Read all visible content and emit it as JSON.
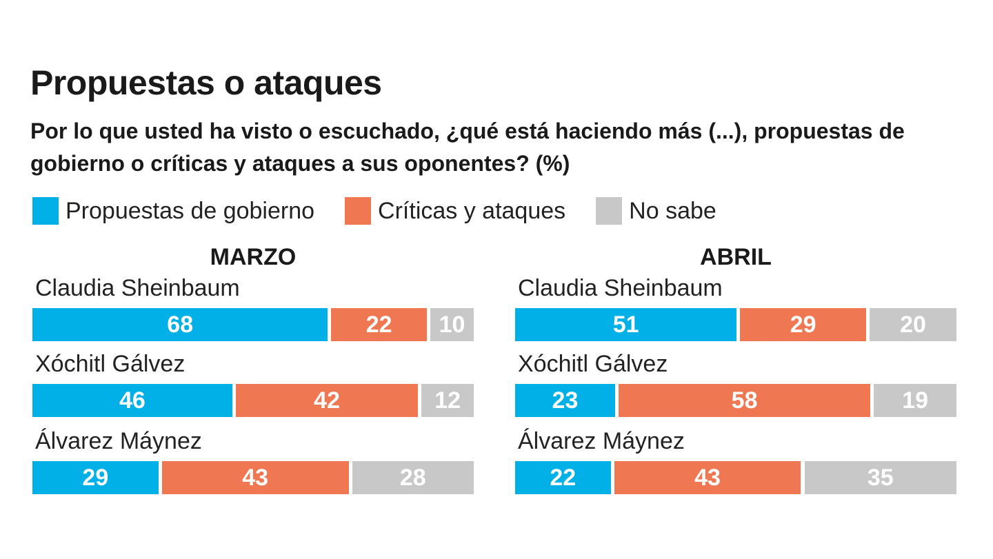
{
  "title": "Propuestas o ataques",
  "subtitle": "Por lo que usted ha visto o escuchado, ¿qué está haciendo más (...), propuestas de gobierno o críticas y ataques a sus oponentes? (%)",
  "colors": {
    "propuestas": "#00b0e6",
    "criticas": "#ef7752",
    "no_sabe": "#c8c8c8"
  },
  "legend": [
    {
      "label": "Propuestas de gobierno",
      "color": "#00b0e6"
    },
    {
      "label": "Críticas y ataques",
      "color": "#ef7752"
    },
    {
      "label": "No sabe",
      "color": "#c8c8c8"
    }
  ],
  "chart_data": [
    {
      "type": "bar",
      "orientation": "horizontal",
      "stacked": true,
      "title": "MARZO",
      "categories": [
        "Claudia Sheinbaum",
        "Xóchitl Gálvez",
        "Álvarez Máynez"
      ],
      "series": [
        {
          "name": "Propuestas de gobierno",
          "values": [
            68,
            46,
            29
          ]
        },
        {
          "name": "Críticas y ataques",
          "values": [
            22,
            42,
            43
          ]
        },
        {
          "name": "No sabe",
          "values": [
            10,
            12,
            28
          ]
        }
      ]
    },
    {
      "type": "bar",
      "orientation": "horizontal",
      "stacked": true,
      "title": "ABRIL",
      "categories": [
        "Claudia Sheinbaum",
        "Xóchitl Gálvez",
        "Álvarez Máynez"
      ],
      "series": [
        {
          "name": "Propuestas de gobierno",
          "values": [
            51,
            23,
            22
          ]
        },
        {
          "name": "Críticas y ataques",
          "values": [
            29,
            58,
            43
          ]
        },
        {
          "name": "No sabe",
          "values": [
            20,
            19,
            35
          ]
        }
      ]
    }
  ]
}
